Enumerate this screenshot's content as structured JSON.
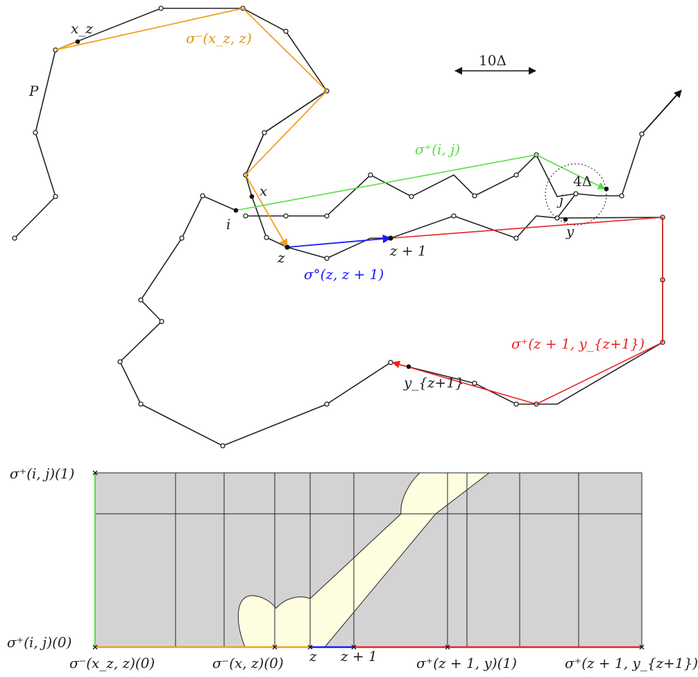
{
  "colors": {
    "path": "#222222",
    "sigma_minus": "#f0a020",
    "sigma_plus_ij": "#55e040",
    "sigma_circ": "#1a1aff",
    "sigma_plus_z": "#ee2222",
    "free_space": "#fffde0",
    "blocked": "#d3d3d3"
  },
  "top": {
    "labels": {
      "P": "P",
      "x_z": "x_z",
      "sigma_minus": "σ⁻(x_z, z)",
      "scale": "10Δ",
      "sigma_plus_ij": "σ⁺(i, j)",
      "four_delta": "4Δ",
      "x": "x",
      "i": "i",
      "j": "j",
      "y": "y",
      "z": "z",
      "z1": "z + 1",
      "sigma_circ": "σ°(z, z + 1)",
      "sigma_plus_z": "σ⁺(z + 1, y_{z+1})",
      "y_z1": "y_{z+1}"
    }
  },
  "bottom": {
    "ylabels": {
      "top": "σ⁺(i, j)(1)",
      "bottom": "σ⁺(i, j)(0)"
    },
    "xlabels": {
      "a": "σ⁻(x_z, z)(0)",
      "b": "σ⁻(x, z)(0)",
      "c": "z",
      "d": "z + 1",
      "e": "σ⁺(z + 1, y)(1)",
      "f": "σ⁺(z + 1, y_{z+1})(1)"
    }
  }
}
